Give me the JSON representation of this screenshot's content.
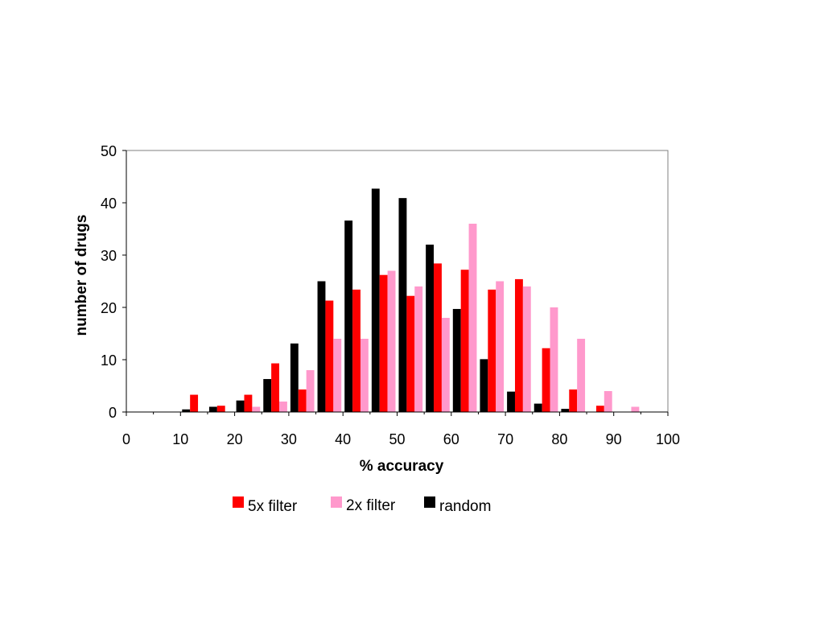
{
  "chart_data": {
    "type": "bar",
    "title": "",
    "xlabel": "% accuracy",
    "ylabel": "number of drugs",
    "xlim": [
      0,
      100
    ],
    "ylim": [
      0,
      50
    ],
    "x_ticks": [
      "0",
      "10",
      "20",
      "30",
      "40",
      "50",
      "60",
      "70",
      "80",
      "90",
      "100"
    ],
    "y_ticks": [
      "0",
      "10",
      "20",
      "30",
      "40",
      "50"
    ],
    "bin_width": 5,
    "bin_starts": [
      0,
      5,
      10,
      15,
      20,
      25,
      30,
      35,
      40,
      45,
      50,
      55,
      60,
      65,
      70,
      75,
      80,
      85,
      90,
      95
    ],
    "grid": false,
    "legend_position": "bottom",
    "series": [
      {
        "name": "random",
        "color": "#000000",
        "values": [
          0,
          0,
          0.5,
          1,
          2.2,
          6.3,
          13.1,
          25,
          36.6,
          42.7,
          40.9,
          32,
          19.7,
          10.1,
          3.9,
          1.6,
          0.6,
          0,
          0,
          0
        ]
      },
      {
        "name": "5x filter",
        "color": "#ff0000",
        "values": [
          0,
          0,
          3.3,
          1.2,
          3.3,
          9.3,
          4.3,
          21.3,
          23.4,
          26.2,
          22.2,
          28.4,
          27.2,
          23.4,
          25.4,
          12.2,
          4.3,
          1.2,
          0,
          0
        ]
      },
      {
        "name": "2x filter",
        "color": "#ff99cc",
        "values": [
          0,
          0,
          0,
          0,
          1,
          2,
          8,
          14,
          14,
          27,
          24,
          18,
          36,
          25,
          24,
          20,
          14,
          4,
          1,
          0
        ]
      }
    ],
    "legend_order": [
      "5x filter",
      "2x filter",
      "random"
    ]
  }
}
